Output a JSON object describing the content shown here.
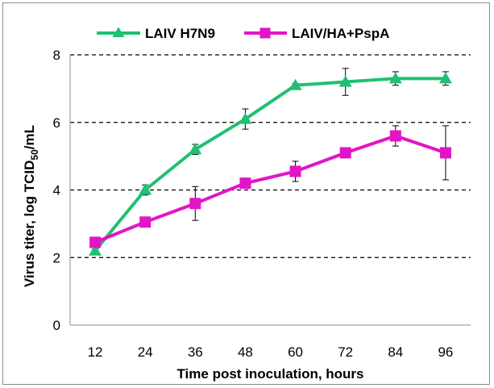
{
  "chart_data": {
    "type": "line",
    "title": "",
    "xlabel": "Time post inoculation, hours",
    "ylabel": {
      "main": "Virus titer, log TCID",
      "sub": "50",
      "tail": "/mL"
    },
    "x": [
      12,
      24,
      36,
      48,
      60,
      72,
      84,
      96
    ],
    "xticks": [
      "12",
      "24",
      "36",
      "48",
      "60",
      "72",
      "84",
      "96"
    ],
    "ylim": [
      0,
      8
    ],
    "yticks": [
      0,
      2,
      4,
      6,
      8
    ],
    "grid": "dashed horizontal at 2, 4, 6, 8",
    "legend": "top",
    "series": [
      {
        "name": "LAIV H7N9",
        "color": "#1fc073",
        "marker": "triangle",
        "values": [
          2.2,
          4.0,
          5.2,
          6.1,
          7.1,
          7.2,
          7.3,
          7.3
        ],
        "err": [
          0.05,
          0.15,
          0.15,
          0.3,
          0.05,
          0.4,
          0.2,
          0.2
        ]
      },
      {
        "name": "LAIV/HA+PspA",
        "color": "#e215c5",
        "marker": "square",
        "values": [
          2.45,
          3.05,
          3.6,
          4.2,
          4.55,
          5.1,
          5.6,
          5.1
        ],
        "err": [
          0.05,
          0.1,
          0.5,
          0.15,
          0.3,
          0.1,
          0.3,
          0.8
        ]
      }
    ]
  }
}
